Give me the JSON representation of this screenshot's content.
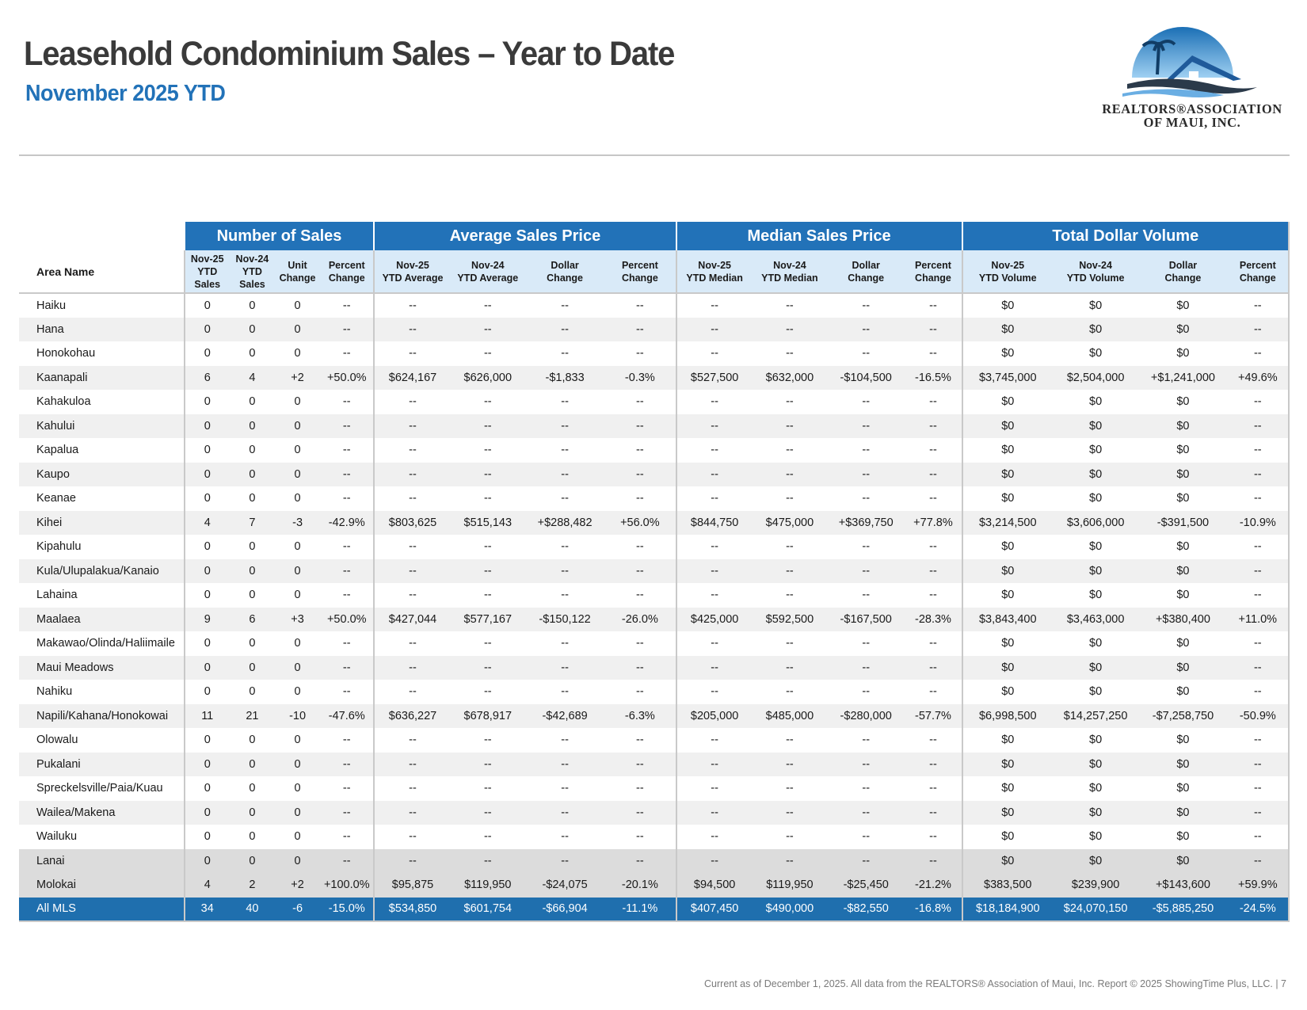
{
  "header": {
    "title": "Leasehold Condominium Sales – Year to Date",
    "subtitle": "November 2025 YTD"
  },
  "logo": {
    "line1": "REALTORS®ASSOCIATION",
    "line2": "OF MAUI, INC."
  },
  "table": {
    "area_header": "Area Name",
    "groups": [
      "Number of Sales",
      "Average Sales Price",
      "Median Sales Price",
      "Total Dollar Volume"
    ],
    "columns": [
      [
        "Nov-25",
        "YTD",
        "Sales"
      ],
      [
        "Nov-24",
        "YTD",
        "Sales"
      ],
      [
        "Unit",
        "Change"
      ],
      [
        "Percent",
        "Change"
      ],
      [
        "Nov-25",
        "YTD Average"
      ],
      [
        "Nov-24",
        "YTD Average"
      ],
      [
        "Dollar",
        "Change"
      ],
      [
        "Percent",
        "Change"
      ],
      [
        "Nov-25",
        "YTD Median"
      ],
      [
        "Nov-24",
        "YTD Median"
      ],
      [
        "Dollar",
        "Change"
      ],
      [
        "Percent",
        "Change"
      ],
      [
        "Nov-25",
        "YTD Volume"
      ],
      [
        "Nov-24",
        "YTD Volume"
      ],
      [
        "Dollar",
        "Change"
      ],
      [
        "Percent",
        "Change"
      ]
    ],
    "rows": [
      {
        "area": "Haiku",
        "values": [
          "0",
          "0",
          "0",
          "--",
          "--",
          "--",
          "--",
          "--",
          "--",
          "--",
          "--",
          "--",
          "$0",
          "$0",
          "$0",
          "--"
        ]
      },
      {
        "area": "Hana",
        "values": [
          "0",
          "0",
          "0",
          "--",
          "--",
          "--",
          "--",
          "--",
          "--",
          "--",
          "--",
          "--",
          "$0",
          "$0",
          "$0",
          "--"
        ]
      },
      {
        "area": "Honokohau",
        "values": [
          "0",
          "0",
          "0",
          "--",
          "--",
          "--",
          "--",
          "--",
          "--",
          "--",
          "--",
          "--",
          "$0",
          "$0",
          "$0",
          "--"
        ]
      },
      {
        "area": "Kaanapali",
        "values": [
          "6",
          "4",
          "+2",
          "+50.0%",
          "$624,167",
          "$626,000",
          "-$1,833",
          "-0.3%",
          "$527,500",
          "$632,000",
          "-$104,500",
          "-16.5%",
          "$3,745,000",
          "$2,504,000",
          "+$1,241,000",
          "+49.6%"
        ]
      },
      {
        "area": "Kahakuloa",
        "values": [
          "0",
          "0",
          "0",
          "--",
          "--",
          "--",
          "--",
          "--",
          "--",
          "--",
          "--",
          "--",
          "$0",
          "$0",
          "$0",
          "--"
        ]
      },
      {
        "area": "Kahului",
        "values": [
          "0",
          "0",
          "0",
          "--",
          "--",
          "--",
          "--",
          "--",
          "--",
          "--",
          "--",
          "--",
          "$0",
          "$0",
          "$0",
          "--"
        ]
      },
      {
        "area": "Kapalua",
        "values": [
          "0",
          "0",
          "0",
          "--",
          "--",
          "--",
          "--",
          "--",
          "--",
          "--",
          "--",
          "--",
          "$0",
          "$0",
          "$0",
          "--"
        ]
      },
      {
        "area": "Kaupo",
        "values": [
          "0",
          "0",
          "0",
          "--",
          "--",
          "--",
          "--",
          "--",
          "--",
          "--",
          "--",
          "--",
          "$0",
          "$0",
          "$0",
          "--"
        ]
      },
      {
        "area": "Keanae",
        "values": [
          "0",
          "0",
          "0",
          "--",
          "--",
          "--",
          "--",
          "--",
          "--",
          "--",
          "--",
          "--",
          "$0",
          "$0",
          "$0",
          "--"
        ]
      },
      {
        "area": "Kihei",
        "values": [
          "4",
          "7",
          "-3",
          "-42.9%",
          "$803,625",
          "$515,143",
          "+$288,482",
          "+56.0%",
          "$844,750",
          "$475,000",
          "+$369,750",
          "+77.8%",
          "$3,214,500",
          "$3,606,000",
          "-$391,500",
          "-10.9%"
        ]
      },
      {
        "area": "Kipahulu",
        "values": [
          "0",
          "0",
          "0",
          "--",
          "--",
          "--",
          "--",
          "--",
          "--",
          "--",
          "--",
          "--",
          "$0",
          "$0",
          "$0",
          "--"
        ]
      },
      {
        "area": "Kula/Ulupalakua/Kanaio",
        "values": [
          "0",
          "0",
          "0",
          "--",
          "--",
          "--",
          "--",
          "--",
          "--",
          "--",
          "--",
          "--",
          "$0",
          "$0",
          "$0",
          "--"
        ]
      },
      {
        "area": "Lahaina",
        "values": [
          "0",
          "0",
          "0",
          "--",
          "--",
          "--",
          "--",
          "--",
          "--",
          "--",
          "--",
          "--",
          "$0",
          "$0",
          "$0",
          "--"
        ]
      },
      {
        "area": "Maalaea",
        "values": [
          "9",
          "6",
          "+3",
          "+50.0%",
          "$427,044",
          "$577,167",
          "-$150,122",
          "-26.0%",
          "$425,000",
          "$592,500",
          "-$167,500",
          "-28.3%",
          "$3,843,400",
          "$3,463,000",
          "+$380,400",
          "+11.0%"
        ]
      },
      {
        "area": "Makawao/Olinda/Haliimaile",
        "values": [
          "0",
          "0",
          "0",
          "--",
          "--",
          "--",
          "--",
          "--",
          "--",
          "--",
          "--",
          "--",
          "$0",
          "$0",
          "$0",
          "--"
        ]
      },
      {
        "area": "Maui Meadows",
        "values": [
          "0",
          "0",
          "0",
          "--",
          "--",
          "--",
          "--",
          "--",
          "--",
          "--",
          "--",
          "--",
          "$0",
          "$0",
          "$0",
          "--"
        ]
      },
      {
        "area": "Nahiku",
        "values": [
          "0",
          "0",
          "0",
          "--",
          "--",
          "--",
          "--",
          "--",
          "--",
          "--",
          "--",
          "--",
          "$0",
          "$0",
          "$0",
          "--"
        ]
      },
      {
        "area": "Napili/Kahana/Honokowai",
        "values": [
          "11",
          "21",
          "-10",
          "-47.6%",
          "$636,227",
          "$678,917",
          "-$42,689",
          "-6.3%",
          "$205,000",
          "$485,000",
          "-$280,000",
          "-57.7%",
          "$6,998,500",
          "$14,257,250",
          "-$7,258,750",
          "-50.9%"
        ]
      },
      {
        "area": "Olowalu",
        "values": [
          "0",
          "0",
          "0",
          "--",
          "--",
          "--",
          "--",
          "--",
          "--",
          "--",
          "--",
          "--",
          "$0",
          "$0",
          "$0",
          "--"
        ]
      },
      {
        "area": "Pukalani",
        "values": [
          "0",
          "0",
          "0",
          "--",
          "--",
          "--",
          "--",
          "--",
          "--",
          "--",
          "--",
          "--",
          "$0",
          "$0",
          "$0",
          "--"
        ]
      },
      {
        "area": "Spreckelsville/Paia/Kuau",
        "values": [
          "0",
          "0",
          "0",
          "--",
          "--",
          "--",
          "--",
          "--",
          "--",
          "--",
          "--",
          "--",
          "$0",
          "$0",
          "$0",
          "--"
        ]
      },
      {
        "area": "Wailea/Makena",
        "values": [
          "0",
          "0",
          "0",
          "--",
          "--",
          "--",
          "--",
          "--",
          "--",
          "--",
          "--",
          "--",
          "$0",
          "$0",
          "$0",
          "--"
        ]
      },
      {
        "area": "Wailuku",
        "values": [
          "0",
          "0",
          "0",
          "--",
          "--",
          "--",
          "--",
          "--",
          "--",
          "--",
          "--",
          "--",
          "$0",
          "$0",
          "$0",
          "--"
        ]
      },
      {
        "area": "Lanai",
        "style": "grey",
        "values": [
          "0",
          "0",
          "0",
          "--",
          "--",
          "--",
          "--",
          "--",
          "--",
          "--",
          "--",
          "--",
          "$0",
          "$0",
          "$0",
          "--"
        ]
      },
      {
        "area": "Molokai",
        "style": "grey",
        "values": [
          "4",
          "2",
          "+2",
          "+100.0%",
          "$95,875",
          "$119,950",
          "-$24,075",
          "-20.1%",
          "$94,500",
          "$119,950",
          "-$25,450",
          "-21.2%",
          "$383,500",
          "$239,900",
          "+$143,600",
          "+59.9%"
        ]
      },
      {
        "area": "All MLS",
        "style": "total",
        "values": [
          "34",
          "40",
          "-6",
          "-15.0%",
          "$534,850",
          "$601,754",
          "-$66,904",
          "-11.1%",
          "$407,450",
          "$490,000",
          "-$82,550",
          "-16.8%",
          "$18,184,900",
          "$24,070,150",
          "-$5,885,250",
          "-24.5%"
        ]
      }
    ]
  },
  "footer": {
    "text": "Current as of December 1, 2025. All data from the REALTORS® Association of Maui, Inc. Report © 2025 ShowingTime Plus, LLC.  |  7"
  },
  "colors": {
    "brand_blue": "#2272b8",
    "total_row": "#1f6fae",
    "subheader_bg": "#d9eaf8",
    "alt_row": "#f0f0f0",
    "grey_row": "#dcdcdc"
  }
}
